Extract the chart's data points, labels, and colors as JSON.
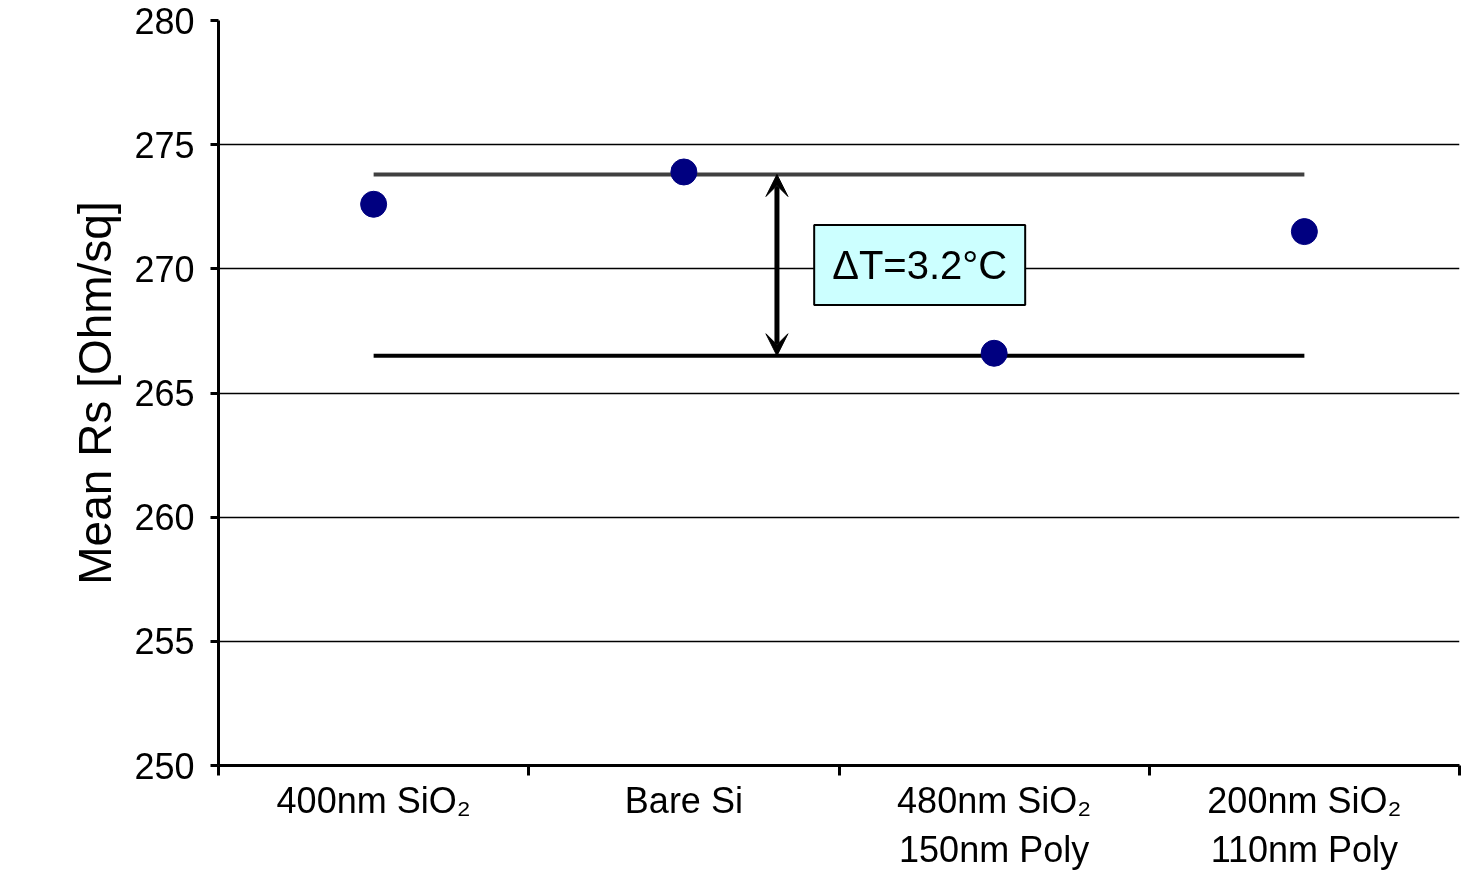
{
  "chart_data": {
    "type": "scatter",
    "ylabel": "Mean Rs [Ohm/sq]",
    "categories": [
      "400nm SiO₂",
      "Bare Si",
      "480nm SiO₂\n150nm Poly",
      "200nm SiO₂\n110nm Poly"
    ],
    "series": [
      {
        "color": "#000080",
        "values": [
          272.6,
          273.9,
          266.6,
          271.5
        ]
      }
    ],
    "marker": "circle",
    "ylim": [
      250,
      280
    ],
    "yticks": [
      250,
      255,
      260,
      265,
      270,
      275,
      280
    ],
    "grid": "y",
    "ref_lines": [
      {
        "axis": "y",
        "value": 273.8,
        "color": "#404040"
      },
      {
        "axis": "y",
        "value": 266.5,
        "color": "#000000"
      }
    ],
    "annotations": [
      "ΔT=3.2°C"
    ]
  }
}
